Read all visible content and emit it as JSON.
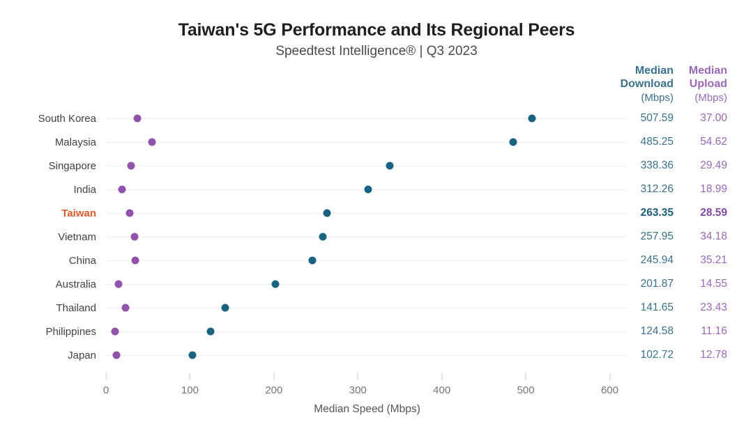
{
  "header": {
    "title": "Taiwan's 5G Performance and Its Regional Peers",
    "subtitle": "Speedtest Intelligence® | Q3 2023"
  },
  "table": {
    "download_header": "Median\nDownload",
    "upload_header": "Median\nUpload",
    "units_label": "(Mbps)"
  },
  "colors": {
    "download_dot": "#1a6380",
    "upload_dot": "#9153a9",
    "download_text": "#3b708c",
    "upload_text": "#9a68b5",
    "download_text_bold": "#1d5d7c",
    "upload_text_bold": "#8149a4",
    "highlight_orange": "#e05a2b"
  },
  "chart_data": {
    "type": "scatter",
    "subtype": "horizontal-dot-plot",
    "title": "Taiwan's 5G Performance and Its Regional Peers",
    "subtitle": "Speedtest Intelligence® | Q3 2023",
    "categories": [
      "South Korea",
      "Malaysia",
      "Singapore",
      "India",
      "Taiwan",
      "Vietnam",
      "China",
      "Australia",
      "Thailand",
      "Philippines",
      "Japan"
    ],
    "series": [
      {
        "name": "Median Download (Mbps)",
        "color": "#1a6380",
        "values": [
          507.59,
          485.25,
          338.36,
          312.26,
          263.35,
          257.95,
          245.94,
          201.87,
          141.65,
          124.58,
          102.72
        ]
      },
      {
        "name": "Median Upload (Mbps)",
        "color": "#9153a9",
        "values": [
          37.0,
          54.62,
          29.49,
          18.99,
          28.59,
          34.18,
          35.21,
          14.55,
          23.43,
          11.16,
          12.78
        ]
      }
    ],
    "highlight_category": "Taiwan",
    "highlight_color": "#e05a2b",
    "xlabel": "Median Speed (Mbps)",
    "xlim": [
      0,
      600
    ],
    "xticks": [
      0,
      100,
      200,
      300,
      400,
      500,
      600
    ],
    "grid": "horizontal row gridlines only",
    "legend": "values table on right side"
  }
}
